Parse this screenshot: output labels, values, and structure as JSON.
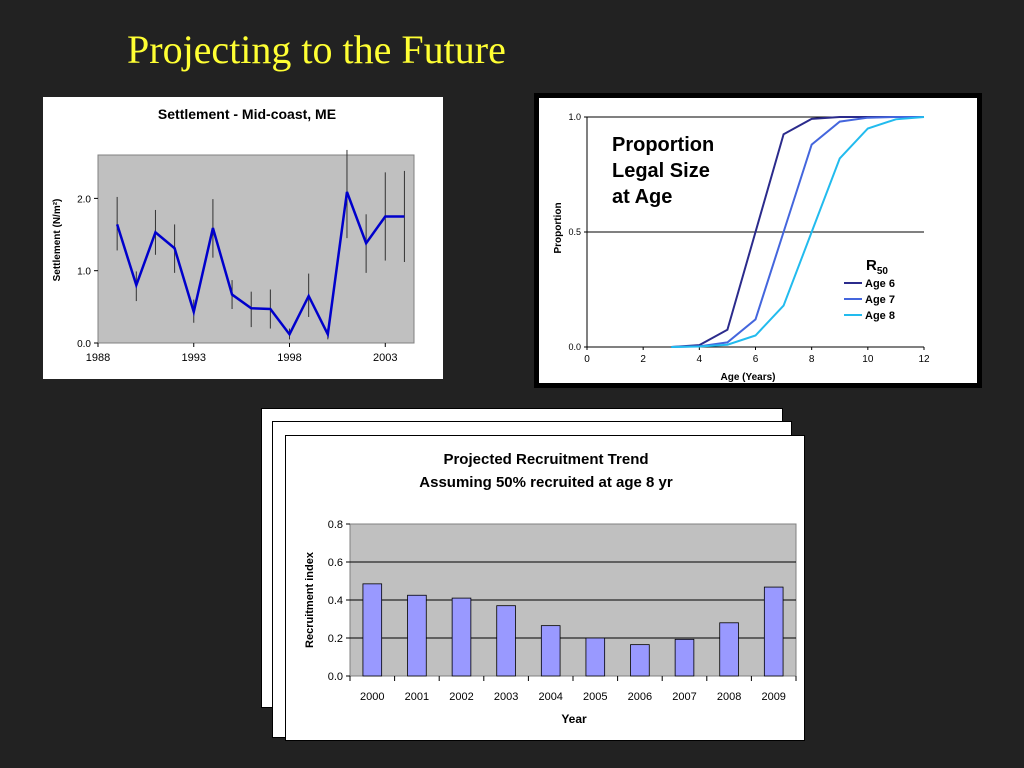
{
  "slide": {
    "title": "Projecting to the Future",
    "title_color": "#ffff33",
    "background": "#222222"
  },
  "chart_data": [
    {
      "type": "line",
      "title": "Settlement - Mid-coast, ME",
      "ylabel": "Settlement (N/m²)",
      "xlabel": "",
      "xlim": [
        1988,
        2004.5
      ],
      "ylim": [
        0,
        2.6
      ],
      "x_ticks": [
        1988,
        1993,
        1998,
        2003
      ],
      "y_ticks": [
        0.0,
        1.0,
        2.0
      ],
      "y_tick_labels": [
        "0.0",
        "1.0",
        "2.0"
      ],
      "plot_background": "#c0c0c0",
      "line_color": "#0000cc",
      "error_bars": true,
      "points": [
        {
          "x": 1989,
          "y": 1.64,
          "lo": 1.28,
          "hi": 2.02
        },
        {
          "x": 1990,
          "y": 0.8,
          "lo": 0.58,
          "hi": 0.99
        },
        {
          "x": 1991,
          "y": 1.53,
          "lo": 1.22,
          "hi": 1.84
        },
        {
          "x": 1992,
          "y": 1.31,
          "lo": 0.97,
          "hi": 1.64
        },
        {
          "x": 1993,
          "y": 0.43,
          "lo": 0.28,
          "hi": 0.6
        },
        {
          "x": 1994,
          "y": 1.59,
          "lo": 1.18,
          "hi": 1.99
        },
        {
          "x": 1995,
          "y": 0.67,
          "lo": 0.47,
          "hi": 0.87
        },
        {
          "x": 1996,
          "y": 0.48,
          "lo": 0.22,
          "hi": 0.71
        },
        {
          "x": 1997,
          "y": 0.47,
          "lo": 0.2,
          "hi": 0.74
        },
        {
          "x": 1998,
          "y": 0.12,
          "lo": 0.05,
          "hi": 0.2
        },
        {
          "x": 1999,
          "y": 0.65,
          "lo": 0.36,
          "hi": 0.96
        },
        {
          "x": 2000,
          "y": 0.12,
          "lo": 0.05,
          "hi": 0.2
        },
        {
          "x": 2001,
          "y": 2.09,
          "lo": 1.45,
          "hi": 2.67
        },
        {
          "x": 2002,
          "y": 1.38,
          "lo": 0.97,
          "hi": 1.78
        },
        {
          "x": 2003,
          "y": 1.75,
          "lo": 1.14,
          "hi": 2.36
        },
        {
          "x": 2004,
          "y": 1.75,
          "lo": 1.12,
          "hi": 2.38
        }
      ]
    },
    {
      "type": "line",
      "title": "Proportion Legal Size at Age",
      "title_lines": [
        "Proportion",
        "Legal Size",
        "at Age"
      ],
      "xlabel": "Age (Years)",
      "ylabel": "Proportion",
      "xlim": [
        0,
        12
      ],
      "ylim": [
        0,
        1
      ],
      "x_ticks": [
        0,
        2,
        4,
        6,
        8,
        10,
        12
      ],
      "y_ticks": [
        0.0,
        0.5,
        1.0
      ],
      "y_tick_labels": [
        "0.0",
        "0.5",
        "1.0"
      ],
      "reference_line_y": 0.5,
      "legend": {
        "title": "R",
        "title_subscript": "50",
        "position": "center-right"
      },
      "series": [
        {
          "name": "Age 6",
          "color": "#2b2b8c",
          "points": [
            [
              3,
              0
            ],
            [
              4,
              0.008
            ],
            [
              5,
              0.075
            ],
            [
              6,
              0.5
            ],
            [
              7,
              0.925
            ],
            [
              8,
              0.992
            ],
            [
              9,
              1
            ],
            [
              10,
              1
            ],
            [
              11,
              1
            ],
            [
              12,
              1
            ]
          ]
        },
        {
          "name": "Age 7",
          "color": "#4466dd",
          "points": [
            [
              3,
              0
            ],
            [
              4,
              0.003
            ],
            [
              5,
              0.02
            ],
            [
              6,
              0.12
            ],
            [
              7,
              0.5
            ],
            [
              8,
              0.88
            ],
            [
              9,
              0.98
            ],
            [
              10,
              0.997
            ],
            [
              11,
              1
            ],
            [
              12,
              1
            ]
          ]
        },
        {
          "name": "Age 8",
          "color": "#22bbee",
          "points": [
            [
              3,
              0
            ],
            [
              4,
              0.002
            ],
            [
              5,
              0.01
            ],
            [
              6,
              0.05
            ],
            [
              7,
              0.18
            ],
            [
              8,
              0.5
            ],
            [
              9,
              0.82
            ],
            [
              10,
              0.95
            ],
            [
              11,
              0.99
            ],
            [
              12,
              1
            ]
          ]
        }
      ]
    },
    {
      "type": "bar",
      "title": "Projected Recruitment Trend",
      "subtitle": "Assuming 50% recruited at age 8 yr",
      "xlabel": "Year",
      "ylabel": "Recruitment index",
      "ylim": [
        0,
        0.8
      ],
      "y_ticks": [
        0.0,
        0.2,
        0.4,
        0.6,
        0.8
      ],
      "y_tick_labels": [
        "0.0",
        "0.2",
        "0.4",
        "0.6",
        "0.8"
      ],
      "plot_background": "#c0c0c0",
      "bar_color": "#9999ff",
      "categories": [
        "2000",
        "2001",
        "2002",
        "2003",
        "2004",
        "2005",
        "2006",
        "2007",
        "2008",
        "2009"
      ],
      "values": [
        0.485,
        0.425,
        0.41,
        0.37,
        0.265,
        0.2,
        0.165,
        0.193,
        0.28,
        0.468
      ]
    }
  ]
}
